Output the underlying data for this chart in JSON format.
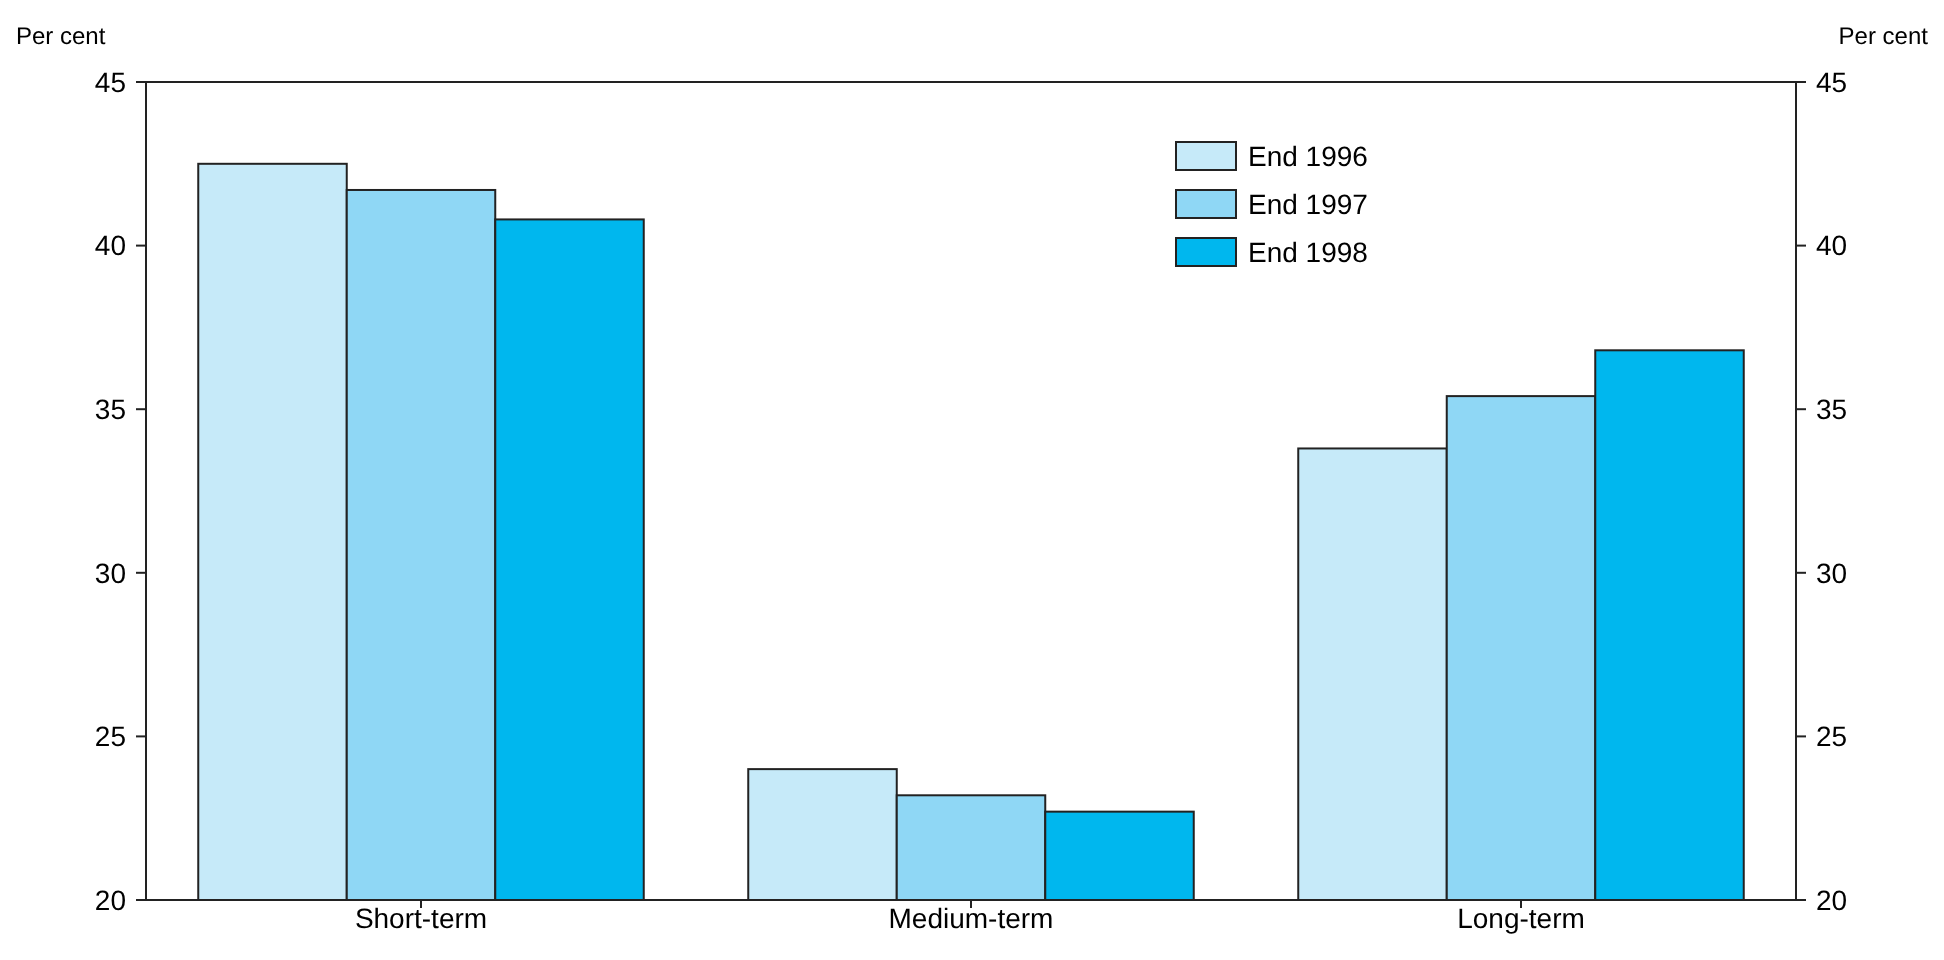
{
  "chart_data": {
    "type": "bar",
    "ylabel": "Per cent",
    "y2label": "Per cent",
    "categories": [
      "Short-term",
      "Medium-term",
      "Long-term"
    ],
    "series": [
      {
        "name": "End 1996",
        "color": "#c6eaf9",
        "values": [
          42.5,
          24.0,
          33.8
        ]
      },
      {
        "name": "End 1997",
        "color": "#8fd7f5",
        "values": [
          41.7,
          23.2,
          35.4
        ]
      },
      {
        "name": "End 1998",
        "color": "#00b7ee",
        "values": [
          40.8,
          22.7,
          36.8
        ]
      }
    ],
    "ylim": [
      20,
      45
    ],
    "yticks": [
      20,
      25,
      30,
      35,
      40,
      45
    ],
    "y2lim": [
      20,
      45
    ],
    "y2ticks": [
      20,
      25,
      30,
      35,
      40,
      45
    ],
    "grid": false,
    "legend": "top right"
  }
}
